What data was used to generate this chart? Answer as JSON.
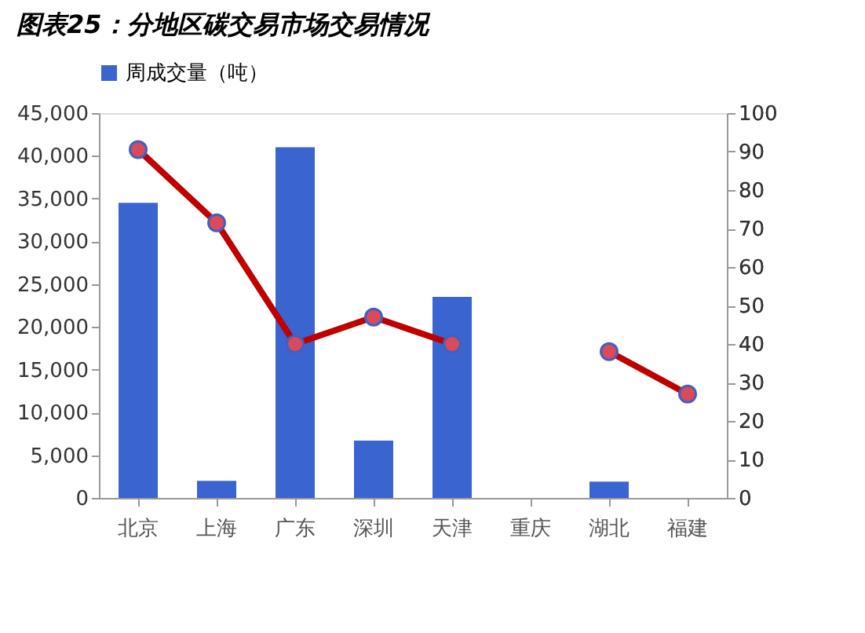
{
  "chart_data": {
    "type": "bar",
    "title": "图表25：分地区碳交易市场交易情况",
    "categories": [
      "北京",
      "上海",
      "广东",
      "深圳",
      "天津",
      "重庆",
      "湖北",
      "福建"
    ],
    "series": [
      {
        "name": "周成交量（吨）",
        "color": "#3a64d0",
        "values": [
          34500,
          2000,
          41000,
          6700,
          23500,
          null,
          1900,
          null
        ]
      },
      {
        "type": "line",
        "axis": "y2",
        "color": "#c00000",
        "marker": "circle",
        "line_style": "solid",
        "values": [
          90.5,
          71.5,
          40,
          47,
          40,
          null,
          38,
          27
        ]
      }
    ],
    "ylim": [
      0,
      45000
    ],
    "yticks": [
      0,
      {
        "value": 5000,
        "label": "5,000"
      },
      {
        "value": 10000,
        "label": "10,000"
      },
      {
        "value": 15000,
        "label": "15,000"
      },
      {
        "value": 20000,
        "label": "20,000"
      },
      {
        "value": 25000,
        "label": "25,000"
      },
      {
        "value": 30000,
        "label": "30,000"
      },
      {
        "value": 35000,
        "label": "35,000"
      },
      {
        "value": 40000,
        "label": "40,000"
      },
      {
        "value": 45000,
        "label": "45,000"
      }
    ],
    "y2lim": [
      0,
      100
    ],
    "y2ticks": [
      0,
      10,
      20,
      30,
      40,
      50,
      60,
      70,
      80,
      90,
      100
    ],
    "grid": false,
    "legend": "top"
  }
}
